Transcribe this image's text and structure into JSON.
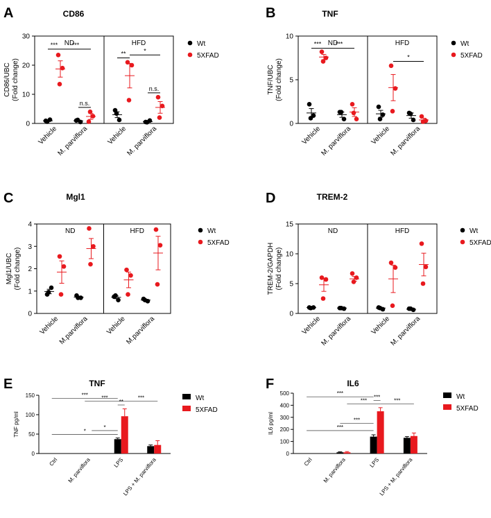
{
  "colors": {
    "wt": "#000000",
    "fxfad": "#e8191e",
    "fxfad_light": "#ef4b44"
  },
  "chart_data": [
    {
      "id": "A",
      "panel_letter": "A",
      "type": "scatter",
      "title": "CD86",
      "ylabel1": "CD86/UBC",
      "ylabel2": "(Fold change)",
      "ylim": [
        0,
        30
      ],
      "yticks": [
        "0",
        "10",
        "20",
        "30"
      ],
      "ytick_values": [
        0,
        10,
        20,
        30
      ],
      "groups": [
        "ND",
        "HFD"
      ],
      "categories": [
        "Vehicle",
        "M. parviflora"
      ],
      "legend": [
        "Wt",
        "5XFAD"
      ],
      "series": [
        {
          "group": 0,
          "cat": 0,
          "s": "wt",
          "points": [
            0.9,
            1.3,
            0.6
          ],
          "mean": 0.9,
          "sem": 0.2
        },
        {
          "group": 0,
          "cat": 0,
          "s": "fx",
          "points": [
            23.5,
            19.0,
            13.5
          ],
          "mean": 18.7,
          "sem": 2.8
        },
        {
          "group": 0,
          "cat": 1,
          "s": "wt",
          "points": [
            1.0,
            0.5,
            1.2
          ],
          "mean": 0.9,
          "sem": 0.2
        },
        {
          "group": 0,
          "cat": 1,
          "s": "fx",
          "points": [
            0.6,
            2.5,
            4.0
          ],
          "mean": 2.4,
          "sem": 1.0
        },
        {
          "group": 1,
          "cat": 0,
          "s": "wt",
          "points": [
            4.5,
            1.2,
            3.4
          ],
          "mean": 3.0,
          "sem": 1.0
        },
        {
          "group": 1,
          "cat": 0,
          "s": "fx",
          "points": [
            21.0,
            20.0,
            8.0
          ],
          "mean": 16.4,
          "sem": 4.2
        },
        {
          "group": 1,
          "cat": 1,
          "s": "wt",
          "points": [
            0.5,
            1.0,
            0.4
          ],
          "mean": 0.6,
          "sem": 0.2
        },
        {
          "group": 1,
          "cat": 1,
          "s": "fx",
          "points": [
            9.0,
            6.0,
            2.0
          ],
          "mean": 5.5,
          "sem": 2.0
        }
      ],
      "annotations": [
        {
          "text": "***",
          "a": [
            0,
            0,
            "wt"
          ],
          "b": [
            0,
            0,
            "fx"
          ],
          "y": 25.5
        },
        {
          "text": "***",
          "a": [
            0,
            0,
            "fx"
          ],
          "b": [
            0,
            1,
            "fx"
          ],
          "y": 25.5
        },
        {
          "text": "n.s.",
          "a": [
            0,
            1,
            "wt"
          ],
          "b": [
            0,
            1,
            "fx"
          ],
          "y": 5.5
        },
        {
          "text": "**",
          "a": [
            1,
            0,
            "wt"
          ],
          "b": [
            1,
            0,
            "fx"
          ],
          "y": 22.5
        },
        {
          "text": "*",
          "a": [
            1,
            0,
            "fx"
          ],
          "b": [
            1,
            1,
            "fx"
          ],
          "y": 23.5
        },
        {
          "text": "n.s.",
          "a": [
            1,
            1,
            "wt"
          ],
          "b": [
            1,
            1,
            "fx"
          ],
          "y": 10.5
        }
      ]
    },
    {
      "id": "B",
      "panel_letter": "B",
      "type": "scatter",
      "title": "TNF",
      "ylabel1": "TNF/UBC",
      "ylabel2": "(Fold change)",
      "ylim": [
        0,
        10
      ],
      "yticks": [
        "0",
        "5",
        "10"
      ],
      "ytick_values": [
        0,
        5,
        10
      ],
      "groups": [
        "ND",
        "HFD"
      ],
      "categories": [
        "Vehicle",
        "M. parviflora"
      ],
      "legend": [
        "Wt",
        "5XFAD"
      ],
      "series": [
        {
          "group": 0,
          "cat": 0,
          "s": "wt",
          "points": [
            2.2,
            0.9,
            0.6
          ],
          "mean": 1.2,
          "sem": 0.5
        },
        {
          "group": 0,
          "cat": 0,
          "s": "fx",
          "points": [
            8.2,
            7.5,
            7.1
          ],
          "mean": 7.6,
          "sem": 0.3
        },
        {
          "group": 0,
          "cat": 1,
          "s": "wt",
          "points": [
            1.3,
            0.5,
            1.3
          ],
          "mean": 1.0,
          "sem": 0.3
        },
        {
          "group": 0,
          "cat": 1,
          "s": "fx",
          "points": [
            2.2,
            0.5,
            1.2
          ],
          "mean": 1.3,
          "sem": 0.5
        },
        {
          "group": 1,
          "cat": 0,
          "s": "wt",
          "points": [
            1.9,
            1.0,
            0.5
          ],
          "mean": 1.1,
          "sem": 0.4
        },
        {
          "group": 1,
          "cat": 0,
          "s": "fx",
          "points": [
            6.6,
            4.0,
            1.4
          ],
          "mean": 4.1,
          "sem": 1.5
        },
        {
          "group": 1,
          "cat": 1,
          "s": "wt",
          "points": [
            1.2,
            0.4,
            1.1
          ],
          "mean": 0.9,
          "sem": 0.3
        },
        {
          "group": 1,
          "cat": 1,
          "s": "fx",
          "points": [
            0.8,
            0.3,
            0.2
          ],
          "mean": 0.4,
          "sem": 0.2
        }
      ],
      "annotations": [
        {
          "text": "***",
          "a": [
            0,
            0,
            "wt"
          ],
          "b": [
            0,
            0,
            "fx"
          ],
          "y": 8.6
        },
        {
          "text": "***",
          "a": [
            0,
            0,
            "fx"
          ],
          "b": [
            0,
            1,
            "fx"
          ],
          "y": 8.6
        },
        {
          "text": "*",
          "a": [
            1,
            0,
            "fx"
          ],
          "b": [
            1,
            1,
            "fx"
          ],
          "y": 7.1
        }
      ]
    },
    {
      "id": "C",
      "panel_letter": "C",
      "type": "scatter",
      "title": "Mgl1",
      "ylabel1": "Mgl1/UBC",
      "ylabel2": "(Fold change)",
      "ylim": [
        0,
        4
      ],
      "yticks": [
        "0",
        "1",
        "2",
        "3",
        "4"
      ],
      "ytick_values": [
        0,
        1,
        2,
        3,
        4
      ],
      "groups": [
        "ND",
        "HFD"
      ],
      "categories": [
        "Vehicle",
        "M.parviflora"
      ],
      "legend": [
        "Wt",
        "5XFAD"
      ],
      "series": [
        {
          "group": 0,
          "cat": 0,
          "s": "wt",
          "points": [
            0.85,
            1.15,
            0.95
          ],
          "mean": 0.98,
          "sem": 0.1
        },
        {
          "group": 0,
          "cat": 0,
          "s": "fx",
          "points": [
            2.55,
            2.1,
            0.85
          ],
          "mean": 1.85,
          "sem": 0.5
        },
        {
          "group": 0,
          "cat": 1,
          "s": "wt",
          "points": [
            0.8,
            0.7,
            0.7
          ],
          "mean": 0.73,
          "sem": 0.04
        },
        {
          "group": 0,
          "cat": 1,
          "s": "fx",
          "points": [
            3.8,
            3.0,
            2.2
          ],
          "mean": 2.9,
          "sem": 0.45
        },
        {
          "group": 1,
          "cat": 0,
          "s": "wt",
          "points": [
            0.75,
            0.6,
            0.8
          ],
          "mean": 0.72,
          "sem": 0.06
        },
        {
          "group": 1,
          "cat": 0,
          "s": "fx",
          "points": [
            1.95,
            1.7,
            0.85
          ],
          "mean": 1.5,
          "sem": 0.35
        },
        {
          "group": 1,
          "cat": 1,
          "s": "wt",
          "points": [
            0.65,
            0.55,
            0.6
          ],
          "mean": 0.6,
          "sem": 0.03
        },
        {
          "group": 1,
          "cat": 1,
          "s": "fx",
          "points": [
            3.75,
            3.05,
            1.3
          ],
          "mean": 2.7,
          "sem": 0.75
        }
      ],
      "annotations": []
    },
    {
      "id": "D",
      "panel_letter": "D",
      "type": "scatter",
      "title": "TREM-2",
      "ylabel1": "TREM-2/GAPDH",
      "ylabel2": "(Fold change)",
      "ylim": [
        0,
        15
      ],
      "yticks": [
        "0",
        "5",
        "10",
        "15"
      ],
      "ytick_values": [
        0,
        5,
        10,
        15
      ],
      "groups": [
        "ND",
        "HFD"
      ],
      "categories": [
        "Vehicle",
        "M. parviflora"
      ],
      "legend": [
        "Wt",
        "5XFAD"
      ],
      "series": [
        {
          "group": 0,
          "cat": 0,
          "s": "wt",
          "points": [
            1.0,
            1.0,
            0.9
          ],
          "mean": 1.0,
          "sem": 0.05
        },
        {
          "group": 0,
          "cat": 0,
          "s": "fx",
          "points": [
            6.0,
            5.7,
            2.5
          ],
          "mean": 4.8,
          "sem": 1.1
        },
        {
          "group": 0,
          "cat": 1,
          "s": "wt",
          "points": [
            0.9,
            0.8,
            0.9
          ],
          "mean": 0.9,
          "sem": 0.05
        },
        {
          "group": 0,
          "cat": 1,
          "s": "fx",
          "points": [
            6.7,
            6.0,
            5.3
          ],
          "mean": 5.8,
          "sem": 0.4
        },
        {
          "group": 1,
          "cat": 0,
          "s": "wt",
          "points": [
            1.0,
            0.7,
            0.9
          ],
          "mean": 0.9,
          "sem": 0.1
        },
        {
          "group": 1,
          "cat": 0,
          "s": "fx",
          "points": [
            8.5,
            7.7,
            1.3
          ],
          "mean": 5.8,
          "sem": 2.3
        },
        {
          "group": 1,
          "cat": 1,
          "s": "wt",
          "points": [
            0.8,
            0.6,
            0.8
          ],
          "mean": 0.7,
          "sem": 0.07
        },
        {
          "group": 1,
          "cat": 1,
          "s": "fx",
          "points": [
            11.7,
            7.8,
            5.0
          ],
          "mean": 8.2,
          "sem": 1.9
        }
      ],
      "annotations": []
    },
    {
      "id": "E",
      "panel_letter": "E",
      "type": "bar",
      "title": "TNF",
      "ylabel": "TNF pg/ml",
      "ylim": [
        0,
        150
      ],
      "yticks": [
        "0",
        "50",
        "100",
        "150"
      ],
      "ytick_values": [
        0,
        50,
        100,
        150
      ],
      "categories": [
        "Ctrl",
        "M. parviflora",
        "LPS",
        "LPS + M. parviflora"
      ],
      "legend": [
        "Wt",
        "5XFAD"
      ],
      "series": [
        {
          "name": "Wt",
          "values": [
            0,
            0,
            37,
            19
          ],
          "errors": [
            0,
            0,
            3,
            3
          ]
        },
        {
          "name": "5XFAD",
          "values": [
            0,
            0,
            96,
            22
          ],
          "errors": [
            0,
            0,
            19,
            11
          ]
        }
      ],
      "annotations": [
        {
          "text": "***",
          "x1": [
            0,
            0
          ],
          "x2": [
            2,
            0
          ],
          "y": 142
        },
        {
          "text": "***",
          "x1": [
            1,
            0
          ],
          "x2": [
            2,
            1
          ],
          "y": 135
        },
        {
          "text": "***",
          "x1": [
            2,
            1
          ],
          "x2": [
            3,
            1
          ],
          "y": 135
        },
        {
          "text": "**",
          "x1": [
            2,
            0
          ],
          "x2": [
            2,
            1
          ],
          "y": 125
        },
        {
          "text": "*",
          "x1": [
            1,
            1
          ],
          "x2": [
            2,
            0
          ],
          "y": 59
        },
        {
          "text": "*",
          "x1": [
            0,
            0
          ],
          "x2": [
            2,
            0
          ],
          "y": 49
        }
      ]
    },
    {
      "id": "F",
      "panel_letter": "F",
      "type": "bar",
      "title": "IL6",
      "ylabel": "IL6 pg/ml",
      "ylim": [
        0,
        500
      ],
      "yticks": [
        "0",
        "100",
        "200",
        "300",
        "400",
        "500"
      ],
      "ytick_values": [
        0,
        100,
        200,
        300,
        400,
        500
      ],
      "categories": [
        "Ctrl",
        "M. parviflora",
        "LPS",
        "LPS + M. parviflora"
      ],
      "legend": [
        "Wt",
        "5XFAD"
      ],
      "series": [
        {
          "name": "Wt",
          "values": [
            0,
            10,
            140,
            130
          ],
          "errors": [
            0,
            4,
            15,
            10
          ]
        },
        {
          "name": "5XFAD",
          "values": [
            0,
            10,
            350,
            145
          ],
          "errors": [
            0,
            6,
            30,
            25
          ]
        }
      ],
      "annotations": [
        {
          "text": "***",
          "x1": [
            0,
            0
          ],
          "x2": [
            2,
            0
          ],
          "y": 470
        },
        {
          "text": "***",
          "x1": [
            2,
            0
          ],
          "x2": [
            2,
            1
          ],
          "y": 440
        },
        {
          "text": "***",
          "x1": [
            1,
            1
          ],
          "x2": [
            2,
            1
          ],
          "y": 410
        },
        {
          "text": "***",
          "x1": [
            2,
            1
          ],
          "x2": [
            3,
            1
          ],
          "y": 410
        },
        {
          "text": "***",
          "x1": [
            1,
            0
          ],
          "x2": [
            2,
            0
          ],
          "y": 250
        },
        {
          "text": "***",
          "x1": [
            0,
            0
          ],
          "x2": [
            2,
            0
          ],
          "y": 190
        }
      ]
    }
  ]
}
